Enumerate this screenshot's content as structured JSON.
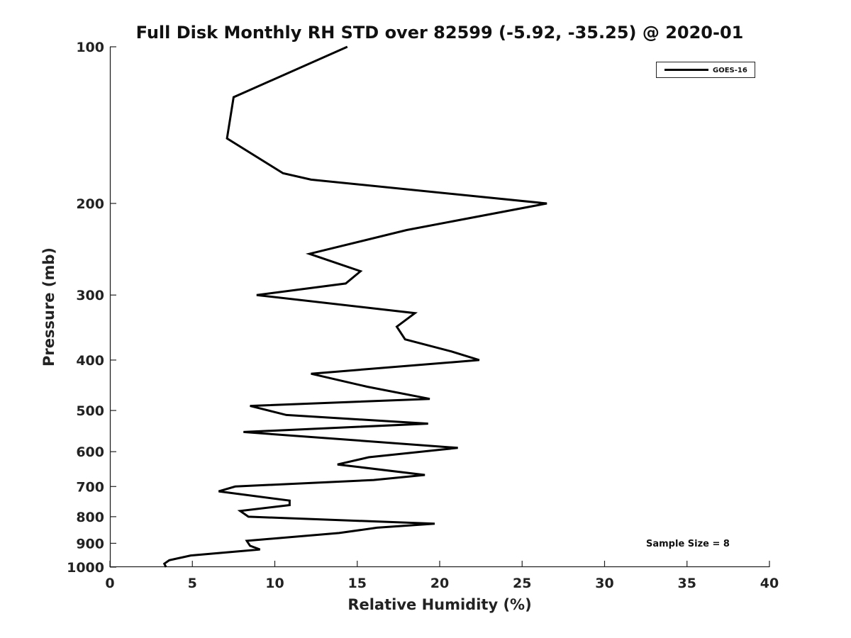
{
  "chart_data": {
    "type": "line",
    "title": "Full Disk Monthly RH STD over 82599 (-5.92, -35.25) @ 2020-01",
    "xlabel": "Relative Humidity (%)",
    "ylabel": "Pressure (mb)",
    "xlim": [
      0,
      40
    ],
    "ylim": [
      100,
      1000
    ],
    "y_scale": "log",
    "y_reversed": true,
    "grid": false,
    "legend_position": "top-right",
    "x_ticks": [
      "0",
      "5",
      "10",
      "15",
      "20",
      "25",
      "30",
      "35",
      "40"
    ],
    "y_ticks": [
      "100",
      "200",
      "300",
      "400",
      "500",
      "600",
      "700",
      "800",
      "900",
      "1000"
    ],
    "series": [
      {
        "name": "GOES-16",
        "color": "#000000",
        "x": [
          14.4,
          7.5,
          7.1,
          10.5,
          12.2,
          26.5,
          18.0,
          12.1,
          15.2,
          14.3,
          8.9,
          18.5,
          17.4,
          17.9,
          20.7,
          22.4,
          12.2,
          15.6,
          19.4,
          8.5,
          10.7,
          19.3,
          8.1,
          21.1,
          15.7,
          13.8,
          19.1,
          16.0,
          7.6,
          6.6,
          10.9,
          10.9,
          7.9,
          8.4,
          19.7,
          16.2,
          13.9,
          8.3,
          8.5,
          9.1,
          4.9,
          3.6,
          3.3,
          3.4
        ],
        "y": [
          100,
          125,
          150,
          175,
          180,
          200,
          225,
          250,
          270,
          285,
          300,
          325,
          345,
          365,
          385,
          400,
          425,
          450,
          475,
          490,
          510,
          530,
          550,
          590,
          615,
          635,
          665,
          680,
          700,
          715,
          745,
          760,
          780,
          800,
          825,
          840,
          860,
          890,
          910,
          925,
          950,
          970,
          985,
          1000
        ]
      }
    ],
    "annotation": "Sample Size = 8"
  }
}
